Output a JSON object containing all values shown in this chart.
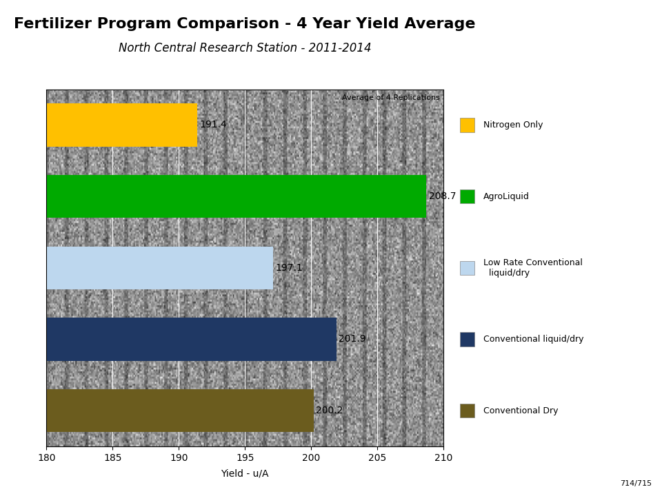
{
  "title": "Fertilizer Program Comparison - 4 Year Yield Average",
  "subtitle": "North Central Research Station - 2011-2014",
  "xlabel": "Yield - u/A",
  "annotation_text": "Average of 4 Replications",
  "footer_text": "714/715",
  "xlim": [
    180,
    210
  ],
  "xticks": [
    180,
    185,
    190,
    195,
    200,
    205,
    210
  ],
  "categories_bottom_to_top": [
    "Conventional Dry",
    "Conventional liquid/dry",
    "Low Rate Conventional\nliquid/dry",
    "AgroLiquid",
    "Nitrogen Only"
  ],
  "values_bottom_to_top": [
    200.2,
    201.9,
    197.1,
    208.7,
    191.4
  ],
  "colors_bottom_to_top": [
    "#6B5C1E",
    "#1F3864",
    "#BDD7EE",
    "#00AA00",
    "#FFC000"
  ],
  "value_labels_bottom_to_top": [
    "200.2",
    "201.9",
    "197.1",
    "208.7",
    "191.4"
  ],
  "background_color": "#FFFFFF",
  "plot_bg_color": "#B8B8B8",
  "title_fontsize": 16,
  "subtitle_fontsize": 12,
  "bar_height": 0.6,
  "legend_labels": [
    "Nitrogen Only",
    "AgroLiquid",
    "Low Rate Conventional\n  liquid/dry",
    "Conventional liquid/dry",
    "Conventional Dry"
  ],
  "legend_colors": [
    "#FFC000",
    "#00AA00",
    "#BDD7EE",
    "#1F3864",
    "#6B5C1E"
  ]
}
